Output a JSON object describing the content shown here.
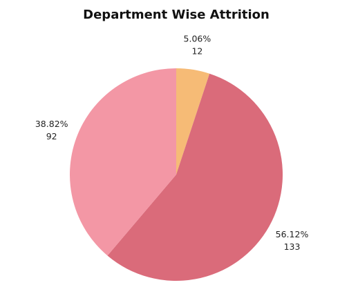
{
  "chart_data": {
    "type": "pie",
    "title": "Department Wise Attrition",
    "slices": [
      {
        "value": 12,
        "percent_label": "5.06%",
        "count_label": "12",
        "color": "#f6bb76"
      },
      {
        "value": 133,
        "percent_label": "56.12%",
        "count_label": "133",
        "color": "#da6b7a"
      },
      {
        "value": 92,
        "percent_label": "38.82%",
        "count_label": "92",
        "color": "#f397a5"
      }
    ],
    "start_angle": "12 o'clock",
    "direction": "clockwise",
    "legend": "none"
  }
}
